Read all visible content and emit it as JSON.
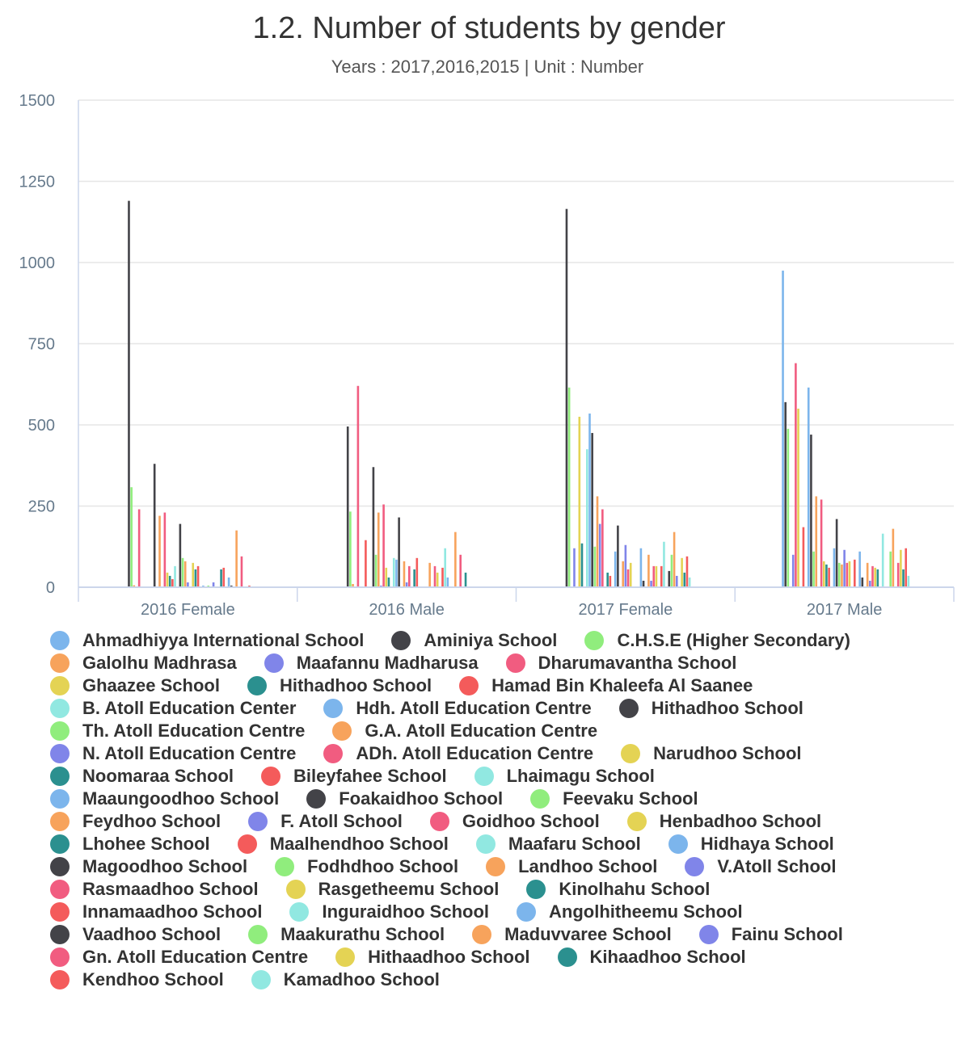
{
  "chart_data": {
    "type": "bar",
    "title": "1.2. Number of students by gender",
    "subtitle": "Years : 2017,2016,2015 | Unit : Number",
    "xlabel": "",
    "ylabel": "",
    "ylim": [
      0,
      1500
    ],
    "yticks": [
      0,
      250,
      500,
      750,
      1000,
      1250,
      1500
    ],
    "ytick_labels": [
      "0",
      "250",
      "500",
      "750",
      "1000",
      "1250",
      "1500"
    ],
    "grid": true,
    "legend_position": "bottom",
    "categories": [
      "2016 Female",
      "2016 Male",
      "2017 Female",
      "2017 Male"
    ],
    "series": [
      {
        "name": "Ahmadhiyya International School",
        "color": "#7cb5ec",
        "values": [
          0,
          0,
          0,
          975
        ]
      },
      {
        "name": "Aminiya School",
        "color": "#434348",
        "values": [
          1190,
          495,
          1165,
          570
        ]
      },
      {
        "name": "C.H.S.E (Higher Secondary)",
        "color": "#90ed7d",
        "values": [
          308,
          233,
          615,
          488
        ]
      },
      {
        "name": "Galolhu Madhrasa",
        "color": "#f7a35c",
        "values": [
          6,
          10,
          0,
          0
        ]
      },
      {
        "name": "Maafannu Madharusa",
        "color": "#8085e9",
        "values": [
          0,
          0,
          120,
          100
        ]
      },
      {
        "name": "Dharumavantha School",
        "color": "#f15c80",
        "values": [
          240,
          620,
          0,
          690
        ]
      },
      {
        "name": "Ghaazee School",
        "color": "#e4d354",
        "values": [
          0,
          0,
          525,
          550
        ]
      },
      {
        "name": "Hithadhoo School",
        "color": "#2b908f",
        "values": [
          0,
          0,
          135,
          0
        ]
      },
      {
        "name": "Hamad Bin Khaleefa Al Saanee",
        "color": "#f45b5b",
        "values": [
          0,
          145,
          0,
          185
        ]
      },
      {
        "name": "B. Atoll Education Center",
        "color": "#91e8e1",
        "values": [
          0,
          0,
          425,
          0
        ]
      },
      {
        "name": "Hdh. Atoll Education Centre",
        "color": "#7cb5ec",
        "values": [
          0,
          0,
          535,
          615
        ]
      },
      {
        "name": "Hithadhoo School",
        "color": "#434348",
        "values": [
          380,
          370,
          475,
          470
        ]
      },
      {
        "name": "Th. Atoll Education Centre",
        "color": "#90ed7d",
        "values": [
          0,
          100,
          125,
          110
        ]
      },
      {
        "name": "G.A. Atoll Education Centre",
        "color": "#f7a35c",
        "values": [
          220,
          230,
          280,
          280
        ]
      },
      {
        "name": "N. Atoll Education Centre",
        "color": "#8085e9",
        "values": [
          0,
          5,
          195,
          0
        ]
      },
      {
        "name": "ADh. Atoll Education Centre",
        "color": "#f15c80",
        "values": [
          230,
          255,
          240,
          270
        ]
      },
      {
        "name": "Narudhoo School",
        "color": "#e4d354",
        "values": [
          45,
          60,
          0,
          80
        ]
      },
      {
        "name": "Noomaraa School",
        "color": "#2b908f",
        "values": [
          35,
          30,
          45,
          70
        ]
      },
      {
        "name": "Bileyfahee School",
        "color": "#f45b5b",
        "values": [
          25,
          0,
          35,
          60
        ]
      },
      {
        "name": "Lhaimagu School",
        "color": "#91e8e1",
        "values": [
          65,
          90,
          0,
          0
        ]
      },
      {
        "name": "Maaungoodhoo School",
        "color": "#7cb5ec",
        "values": [
          0,
          85,
          110,
          120
        ]
      },
      {
        "name": "Foakaidhoo School",
        "color": "#434348",
        "values": [
          195,
          215,
          190,
          210
        ]
      },
      {
        "name": "Feevaku School",
        "color": "#90ed7d",
        "values": [
          90,
          0,
          0,
          75
        ]
      },
      {
        "name": "Feydhoo School",
        "color": "#f7a35c",
        "values": [
          80,
          80,
          80,
          70
        ]
      },
      {
        "name": "F. Atoll School",
        "color": "#8085e9",
        "values": [
          15,
          15,
          130,
          115
        ]
      },
      {
        "name": "Goidhoo School",
        "color": "#f15c80",
        "values": [
          0,
          65,
          55,
          75
        ]
      },
      {
        "name": "Henbadhoo School",
        "color": "#e4d354",
        "values": [
          75,
          0,
          75,
          80
        ]
      },
      {
        "name": "Lhohee School",
        "color": "#2b908f",
        "values": [
          55,
          55,
          0,
          0
        ]
      },
      {
        "name": "Maalhendhoo School",
        "color": "#f45b5b",
        "values": [
          65,
          90,
          0,
          85
        ]
      },
      {
        "name": "Maafaru School",
        "color": "#91e8e1",
        "values": [
          0,
          0,
          0,
          0
        ]
      },
      {
        "name": "Hidhaya School",
        "color": "#7cb5ec",
        "values": [
          5,
          0,
          120,
          110
        ]
      },
      {
        "name": "Magoodhoo School",
        "color": "#434348",
        "values": [
          0,
          0,
          20,
          30
        ]
      },
      {
        "name": "Fodhdhoo School",
        "color": "#90ed7d",
        "values": [
          5,
          0,
          0,
          0
        ]
      },
      {
        "name": "Landhoo School",
        "color": "#f7a35c",
        "values": [
          0,
          75,
          100,
          75
        ]
      },
      {
        "name": "V.Atoll School",
        "color": "#8085e9",
        "values": [
          15,
          0,
          20,
          20
        ]
      },
      {
        "name": "Rasmaadhoo School",
        "color": "#f15c80",
        "values": [
          0,
          65,
          65,
          65
        ]
      },
      {
        "name": "Rasgetheemu School",
        "color": "#e4d354",
        "values": [
          0,
          45,
          65,
          60
        ]
      },
      {
        "name": "Kinolhahu School",
        "color": "#2b908f",
        "values": [
          55,
          0,
          0,
          55
        ]
      },
      {
        "name": "Innamaadhoo School",
        "color": "#f45b5b",
        "values": [
          60,
          60,
          65,
          0
        ]
      },
      {
        "name": "Inguraidhoo School",
        "color": "#91e8e1",
        "values": [
          0,
          120,
          140,
          165
        ]
      },
      {
        "name": "Angolhitheemu School",
        "color": "#7cb5ec",
        "values": [
          30,
          30,
          0,
          0
        ]
      },
      {
        "name": "Vaadhoo School",
        "color": "#434348",
        "values": [
          5,
          0,
          50,
          0
        ]
      },
      {
        "name": "Maakurathu School",
        "color": "#90ed7d",
        "values": [
          0,
          0,
          100,
          110
        ]
      },
      {
        "name": "Maduvvaree School",
        "color": "#f7a35c",
        "values": [
          175,
          170,
          170,
          180
        ]
      },
      {
        "name": "Fainu School",
        "color": "#8085e9",
        "values": [
          0,
          0,
          35,
          0
        ]
      },
      {
        "name": "Gn. Atoll Education Centre",
        "color": "#f15c80",
        "values": [
          95,
          100,
          0,
          75
        ]
      },
      {
        "name": "Hithaadhoo School",
        "color": "#e4d354",
        "values": [
          0,
          0,
          90,
          115
        ]
      },
      {
        "name": "Kihaadhoo School",
        "color": "#2b908f",
        "values": [
          0,
          45,
          45,
          55
        ]
      },
      {
        "name": "Kendhoo School",
        "color": "#f45b5b",
        "values": [
          5,
          0,
          95,
          120
        ]
      },
      {
        "name": "Kamadhoo School",
        "color": "#91e8e1",
        "values": [
          0,
          0,
          30,
          35
        ]
      }
    ]
  }
}
